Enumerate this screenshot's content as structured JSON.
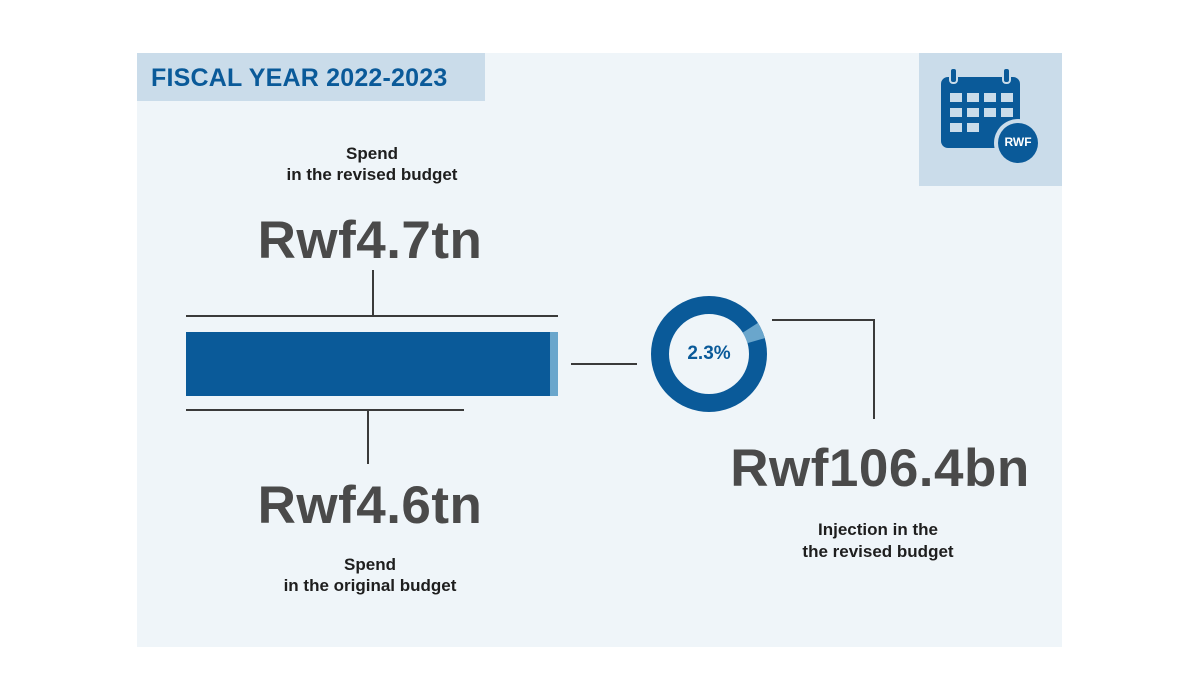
{
  "header": {
    "title": "FISCAL YEAR 2022-2023",
    "icon": "calendar-rwf-icon",
    "icon_text": "RWF"
  },
  "revised": {
    "value": "Rwf4.7tn",
    "label_line1": "Spend",
    "label_line2": "in the revised budget"
  },
  "original": {
    "value": "Rwf4.6tn",
    "label_line1": "Spend",
    "label_line2": "in the original budget"
  },
  "injection": {
    "value": "Rwf106.4bn",
    "percent": "2.3%",
    "label_line1": "Injection in the",
    "label_line2": "the revised budget"
  },
  "colors": {
    "dark_blue": "#0a5a99",
    "light_blue": "#6aa6cc",
    "panel": "#eff5f9",
    "title_bg": "#cadcea"
  },
  "chart_data": {
    "type": "bar",
    "categories": [
      "Spend in the original budget",
      "Spend in the revised budget"
    ],
    "values_tn": [
      4.6,
      4.7
    ],
    "injection_bn": 106.4,
    "injection_percent": 2.3
  }
}
